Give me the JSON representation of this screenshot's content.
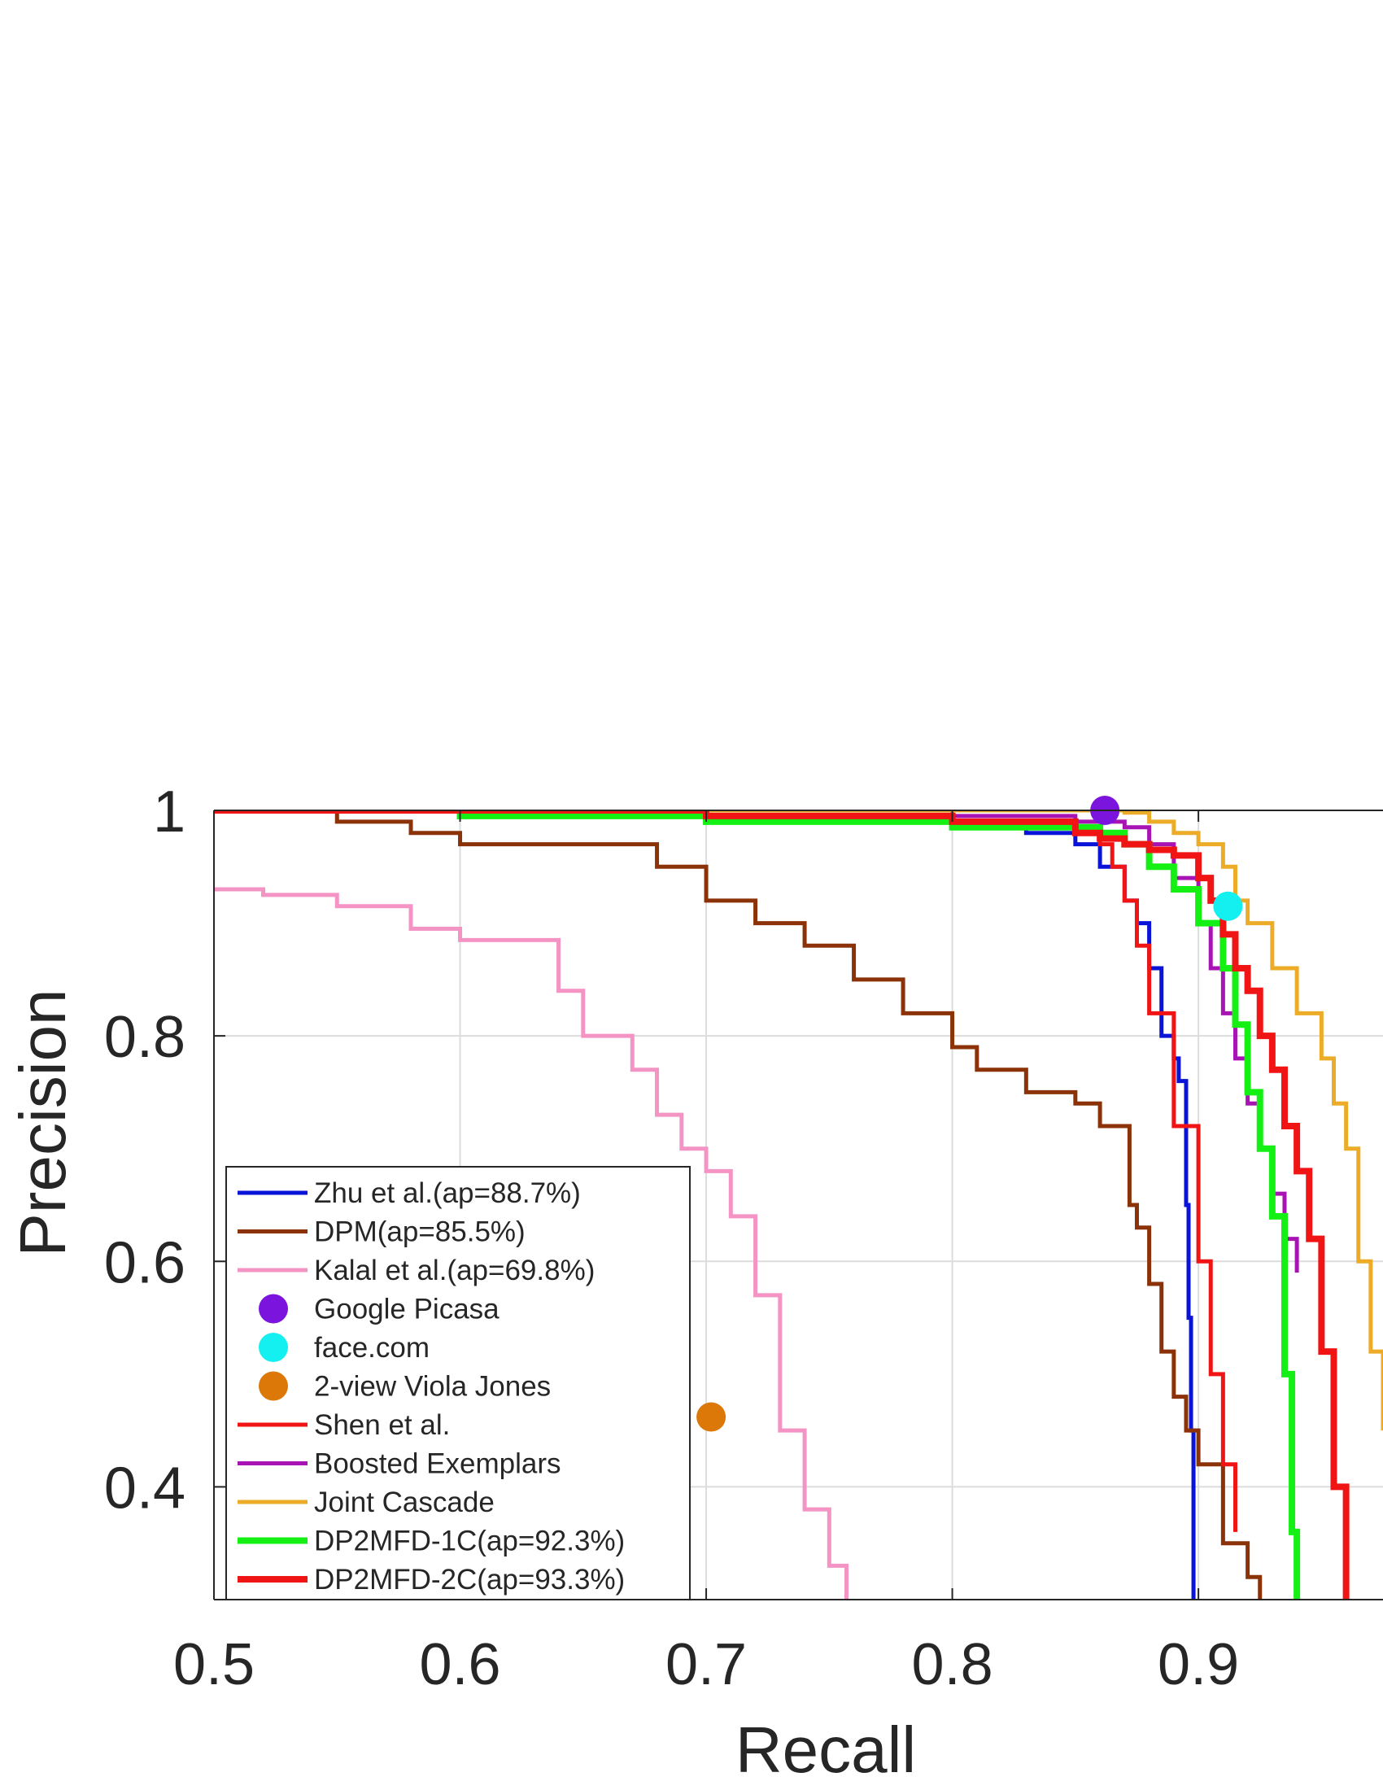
{
  "chart_data": {
    "type": "line",
    "xlabel": "Recall",
    "ylabel": "Precision",
    "xlim": [
      0.5,
      0.975
    ],
    "ylim": [
      0.3,
      1.0
    ],
    "xticks": [
      "0.5",
      "0.6",
      "0.7",
      "0.8",
      "0.9"
    ],
    "xtick_values": [
      0.5,
      0.6,
      0.7,
      0.8,
      0.9
    ],
    "yticks": [
      "0.4",
      "0.6",
      "0.8",
      "1"
    ],
    "ytick_values": [
      0.4,
      0.6,
      0.8,
      1.0
    ],
    "grid": true,
    "legend_position": "bottom-left",
    "series": [
      {
        "name": "Zhu et al.(ap=88.7%)",
        "kind": "line",
        "color": "#0a14d8",
        "x": [
          0.5,
          0.6,
          0.7,
          0.78,
          0.83,
          0.85,
          0.86,
          0.87,
          0.875,
          0.88,
          0.885,
          0.89,
          0.892,
          0.895,
          0.896,
          0.897,
          0.898
        ],
        "y": [
          1.0,
          1.0,
          0.995,
          0.99,
          0.98,
          0.97,
          0.95,
          0.92,
          0.9,
          0.86,
          0.8,
          0.78,
          0.76,
          0.65,
          0.55,
          0.45,
          0.3
        ]
      },
      {
        "name": "DPM(ap=85.5%)",
        "kind": "line",
        "color": "#8b3208",
        "x": [
          0.5,
          0.55,
          0.58,
          0.6,
          0.62,
          0.64,
          0.68,
          0.7,
          0.72,
          0.74,
          0.76,
          0.78,
          0.8,
          0.81,
          0.83,
          0.85,
          0.86,
          0.87,
          0.872,
          0.875,
          0.88,
          0.885,
          0.89,
          0.895,
          0.9,
          0.91,
          0.92,
          0.925
        ],
        "y": [
          1.0,
          0.99,
          0.98,
          0.97,
          0.97,
          0.97,
          0.95,
          0.92,
          0.9,
          0.88,
          0.85,
          0.82,
          0.79,
          0.77,
          0.75,
          0.74,
          0.72,
          0.72,
          0.65,
          0.63,
          0.58,
          0.52,
          0.48,
          0.45,
          0.42,
          0.35,
          0.32,
          0.3
        ]
      },
      {
        "name": "Kalal et al.(ap=69.8%)",
        "kind": "line",
        "color": "#f494c4",
        "x": [
          0.5,
          0.52,
          0.55,
          0.58,
          0.6,
          0.62,
          0.64,
          0.65,
          0.67,
          0.68,
          0.69,
          0.7,
          0.71,
          0.72,
          0.73,
          0.74,
          0.75,
          0.757
        ],
        "y": [
          0.93,
          0.925,
          0.915,
          0.895,
          0.885,
          0.885,
          0.84,
          0.8,
          0.77,
          0.73,
          0.7,
          0.68,
          0.64,
          0.57,
          0.45,
          0.38,
          0.33,
          0.3
        ]
      },
      {
        "name": "Google Picasa",
        "kind": "point",
        "color": "#7b14dc",
        "x": [
          0.862
        ],
        "y": [
          1.0
        ]
      },
      {
        "name": "face.com",
        "kind": "point",
        "color": "#14f0f0",
        "x": [
          0.912
        ],
        "y": [
          0.915
        ]
      },
      {
        "name": "2-view Viola Jones",
        "kind": "point",
        "color": "#dc7808",
        "x": [
          0.702
        ],
        "y": [
          0.462
        ]
      },
      {
        "name": "Shen et al.",
        "kind": "line",
        "color": "#f01414",
        "x": [
          0.5,
          0.7,
          0.8,
          0.85,
          0.86,
          0.865,
          0.87,
          0.875,
          0.88,
          0.89,
          0.9,
          0.905,
          0.91,
          0.915
        ],
        "y": [
          1.0,
          1.0,
          0.99,
          0.985,
          0.97,
          0.95,
          0.92,
          0.88,
          0.82,
          0.72,
          0.6,
          0.5,
          0.42,
          0.36
        ]
      },
      {
        "name": "Boosted Exemplars",
        "kind": "line",
        "color": "#a814b4",
        "x": [
          0.5,
          0.6,
          0.7,
          0.8,
          0.85,
          0.87,
          0.88,
          0.89,
          0.9,
          0.905,
          0.91,
          0.915,
          0.92,
          0.925,
          0.93,
          0.935,
          0.94
        ],
        "y": [
          1.0,
          1.0,
          1.0,
          0.995,
          0.99,
          0.985,
          0.97,
          0.94,
          0.9,
          0.86,
          0.82,
          0.78,
          0.74,
          0.7,
          0.66,
          0.62,
          0.59
        ]
      },
      {
        "name": "Joint Cascade",
        "kind": "line",
        "color": "#ecac28",
        "x": [
          0.5,
          0.7,
          0.8,
          0.87,
          0.88,
          0.89,
          0.9,
          0.91,
          0.915,
          0.92,
          0.93,
          0.94,
          0.95,
          0.955,
          0.96,
          0.965,
          0.97,
          0.975
        ],
        "y": [
          1.0,
          1.0,
          1.0,
          0.998,
          0.99,
          0.98,
          0.97,
          0.95,
          0.92,
          0.9,
          0.86,
          0.82,
          0.78,
          0.74,
          0.7,
          0.6,
          0.52,
          0.45
        ]
      },
      {
        "name": "DP2MFD-1C(ap=92.3%)",
        "kind": "line",
        "color": "#14f014",
        "x": [
          0.5,
          0.6,
          0.7,
          0.8,
          0.86,
          0.87,
          0.88,
          0.89,
          0.9,
          0.91,
          0.915,
          0.92,
          0.925,
          0.93,
          0.935,
          0.938,
          0.94
        ],
        "y": [
          1.0,
          0.995,
          0.99,
          0.985,
          0.98,
          0.97,
          0.95,
          0.93,
          0.9,
          0.86,
          0.81,
          0.75,
          0.7,
          0.64,
          0.5,
          0.36,
          0.3
        ]
      },
      {
        "name": "DP2MFD-2C(ap=93.3%)",
        "kind": "line",
        "color": "#f01414",
        "x": [
          0.5,
          0.6,
          0.7,
          0.8,
          0.85,
          0.86,
          0.87,
          0.88,
          0.89,
          0.9,
          0.905,
          0.91,
          0.915,
          0.92,
          0.925,
          0.93,
          0.935,
          0.94,
          0.945,
          0.95,
          0.955,
          0.96
        ],
        "y": [
          1.0,
          1.0,
          0.995,
          0.99,
          0.98,
          0.975,
          0.97,
          0.965,
          0.96,
          0.94,
          0.92,
          0.89,
          0.86,
          0.84,
          0.8,
          0.77,
          0.72,
          0.68,
          0.62,
          0.52,
          0.4,
          0.3
        ]
      }
    ]
  }
}
